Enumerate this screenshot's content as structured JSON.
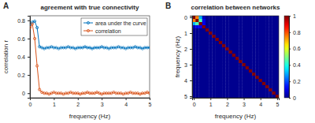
{
  "chart_data": [
    {
      "type": "line",
      "panel_label": "A",
      "title": "agreement with true connectivity",
      "x_label": "frequency (Hz)",
      "y_label": "correlation r",
      "x": [
        0,
        0.1,
        0.2,
        0.3,
        0.4,
        0.5,
        0.6,
        0.7,
        0.8,
        0.9,
        1,
        1.1,
        1.2,
        1.3,
        1.4,
        1.5,
        1.6,
        1.7,
        1.8,
        1.9,
        2,
        2.1,
        2.2,
        2.3,
        2.4,
        2.5,
        2.6,
        2.7,
        2.8,
        2.9,
        3,
        3.1,
        3.2,
        3.3,
        3.4,
        3.5,
        3.6,
        3.7,
        3.8,
        3.9,
        4,
        4.1,
        4.2,
        4.3,
        4.4,
        4.5,
        4.6,
        4.7,
        4.8,
        4.9,
        5
      ],
      "series": [
        {
          "name": "area under the curve",
          "color": "#0072bd",
          "marker": "circle",
          "line_style": "solid",
          "values": [
            0.74,
            0.78,
            0.79,
            0.72,
            0.51,
            0.5,
            0.49,
            0.5,
            0.5,
            0.51,
            0.5,
            0.5,
            0.49,
            0.5,
            0.5,
            0.5,
            0.51,
            0.5,
            0.5,
            0.49,
            0.5,
            0.5,
            0.5,
            0.51,
            0.5,
            0.5,
            0.49,
            0.5,
            0.5,
            0.5,
            0.51,
            0.5,
            0.5,
            0.49,
            0.5,
            0.5,
            0.5,
            0.51,
            0.5,
            0.5,
            0.49,
            0.5,
            0.5,
            0.5,
            0.51,
            0.5,
            0.5,
            0.49,
            0.5,
            0.5,
            0.5
          ]
        },
        {
          "name": "correlation",
          "color": "#d95319",
          "marker": "circle",
          "line_style": "solid",
          "values": [
            0.72,
            0.76,
            0.6,
            0.3,
            0.04,
            0.01,
            0,
            0,
            -0.01,
            0,
            0.01,
            0,
            0,
            0,
            -0.01,
            0,
            0,
            0.01,
            0,
            0,
            0,
            -0.01,
            0,
            0,
            0.01,
            0,
            0,
            0,
            0.01,
            0,
            -0.01,
            0,
            0,
            0,
            0,
            0.01,
            0,
            0,
            0,
            -0.01,
            0,
            0,
            0.01,
            0,
            0,
            0,
            -0.01,
            0,
            0,
            0.01,
            0
          ]
        }
      ],
      "xlim": [
        0,
        5
      ],
      "xticks": [
        0,
        1,
        2,
        3,
        4,
        5
      ],
      "ylim": [
        -0.05,
        0.85
      ],
      "yticks": [
        0,
        0.2,
        0.4,
        0.6,
        0.8
      ],
      "legend": "top-right",
      "grid": false
    },
    {
      "type": "heatmap",
      "panel_label": "B",
      "title": "correlation between networks",
      "x_label": "frequency (Hz)",
      "y_label": "frequency (Hz)",
      "x": [
        0,
        0.2,
        0.4,
        0.6,
        0.8,
        1,
        1.2,
        1.4,
        1.6,
        1.8,
        2,
        2.2,
        2.4,
        2.6,
        2.8,
        3,
        3.2,
        3.4,
        3.6,
        3.8,
        4,
        4.2,
        4.4,
        4.6,
        4.8,
        5
      ],
      "y": [
        0,
        0.2,
        0.4,
        0.6,
        0.8,
        1,
        1.2,
        1.4,
        1.6,
        1.8,
        2,
        2.2,
        2.4,
        2.6,
        2.8,
        3,
        3.2,
        3.4,
        3.6,
        3.8,
        4,
        4.2,
        4.4,
        4.6,
        4.8,
        5
      ],
      "cells": [
        [
          1,
          0.75,
          0.3,
          0.05,
          0,
          0,
          0,
          0,
          0,
          0,
          0,
          0,
          0,
          0,
          0,
          0,
          0,
          0,
          0,
          0,
          0,
          0,
          0,
          0,
          0,
          0
        ],
        [
          0.75,
          1,
          0.45,
          0.1,
          0,
          0,
          0,
          0,
          0,
          0,
          0,
          0,
          0,
          0,
          0,
          0,
          0,
          0,
          0,
          0,
          0,
          0,
          0,
          0,
          0,
          0
        ],
        [
          0.3,
          0.45,
          1,
          0.1,
          0,
          0,
          0,
          0,
          0,
          0,
          0,
          0,
          0,
          0,
          0,
          0,
          0,
          0,
          0,
          0,
          0,
          0,
          0,
          0,
          0,
          0
        ],
        [
          0.05,
          0.1,
          0.1,
          1,
          0,
          0,
          0,
          0,
          0,
          0,
          0,
          0,
          0,
          0,
          0,
          0,
          0,
          0,
          0,
          0,
          0,
          0,
          0,
          0,
          0,
          0
        ],
        [
          0,
          0,
          0,
          0,
          1,
          0,
          0,
          0,
          0,
          0,
          0,
          0,
          0,
          0,
          0,
          0,
          0,
          0,
          0,
          0,
          0,
          0,
          0,
          0,
          0,
          0
        ],
        [
          0,
          0,
          0,
          0,
          0,
          1,
          0,
          0,
          0,
          0,
          0,
          0,
          0,
          0,
          0,
          0,
          0,
          0,
          0,
          0,
          0,
          0,
          0,
          0,
          0,
          0
        ],
        [
          0,
          0,
          0,
          0,
          0,
          0,
          1,
          0,
          0,
          0,
          0,
          0,
          0,
          0,
          0,
          0,
          0,
          0,
          0,
          0,
          0,
          0,
          0,
          0,
          0,
          0
        ],
        [
          0,
          0,
          0,
          0,
          0,
          0,
          0,
          1,
          0,
          0,
          0,
          0,
          0,
          0,
          0,
          0,
          0,
          0,
          0,
          0,
          0,
          0,
          0,
          0,
          0,
          0
        ],
        [
          0,
          0,
          0,
          0,
          0,
          0,
          0,
          0,
          1,
          0,
          0,
          0,
          0,
          0,
          0,
          0,
          0,
          0,
          0,
          0,
          0,
          0,
          0,
          0,
          0,
          0
        ],
        [
          0,
          0,
          0,
          0,
          0,
          0,
          0,
          0,
          0,
          1,
          0,
          0,
          0,
          0,
          0,
          0,
          0,
          0,
          0,
          0,
          0,
          0,
          0,
          0,
          0,
          0
        ],
        [
          0,
          0,
          0,
          0,
          0,
          0,
          0,
          0,
          0,
          0,
          1,
          0,
          0,
          0,
          0,
          0,
          0,
          0,
          0,
          0,
          0,
          0,
          0,
          0,
          0,
          0
        ],
        [
          0,
          0,
          0,
          0,
          0,
          0,
          0,
          0,
          0,
          0,
          0,
          1,
          0,
          0,
          0,
          0,
          0,
          0,
          0,
          0,
          0,
          0,
          0,
          0,
          0,
          0
        ],
        [
          0,
          0,
          0,
          0,
          0,
          0,
          0,
          0,
          0,
          0,
          0,
          0,
          1,
          0,
          0,
          0,
          0,
          0,
          0,
          0,
          0,
          0,
          0,
          0,
          0,
          0
        ],
        [
          0,
          0,
          0,
          0,
          0,
          0,
          0,
          0,
          0,
          0,
          0,
          0,
          0,
          1,
          0,
          0,
          0,
          0,
          0,
          0,
          0,
          0,
          0,
          0,
          0,
          0
        ],
        [
          0,
          0,
          0,
          0,
          0,
          0,
          0,
          0,
          0,
          0,
          0,
          0,
          0,
          0,
          1,
          0,
          0,
          0,
          0,
          0,
          0,
          0,
          0,
          0,
          0,
          0
        ],
        [
          0,
          0,
          0,
          0,
          0,
          0,
          0,
          0,
          0,
          0,
          0,
          0,
          0,
          0,
          0,
          1,
          0,
          0,
          0,
          0,
          0,
          0,
          0,
          0,
          0,
          0
        ],
        [
          0,
          0,
          0,
          0,
          0,
          0,
          0,
          0,
          0,
          0,
          0,
          0,
          0,
          0,
          0,
          0,
          1,
          0,
          0,
          0,
          0,
          0,
          0,
          0,
          0,
          0
        ],
        [
          0,
          0,
          0,
          0,
          0,
          0,
          0,
          0,
          0,
          0,
          0,
          0,
          0,
          0,
          0,
          0,
          0,
          1,
          0,
          0,
          0,
          0,
          0,
          0,
          0,
          0
        ],
        [
          0,
          0,
          0,
          0,
          0,
          0,
          0,
          0,
          0,
          0,
          0,
          0,
          0,
          0,
          0,
          0,
          0,
          0,
          1,
          0,
          0,
          0,
          0,
          0,
          0,
          0
        ],
        [
          0,
          0,
          0,
          0,
          0,
          0,
          0,
          0,
          0,
          0,
          0,
          0,
          0,
          0,
          0,
          0,
          0,
          0,
          0,
          1,
          0,
          0,
          0,
          0,
          0,
          0
        ],
        [
          0,
          0,
          0,
          0,
          0,
          0,
          0,
          0,
          0,
          0,
          0,
          0,
          0,
          0,
          0,
          0,
          0,
          0,
          0,
          0,
          1,
          0,
          0,
          0,
          0,
          0
        ],
        [
          0,
          0,
          0,
          0,
          0,
          0,
          0,
          0,
          0,
          0,
          0,
          0,
          0,
          0,
          0,
          0,
          0,
          0,
          0,
          0,
          0,
          1,
          0,
          0,
          0,
          0
        ],
        [
          0,
          0,
          0,
          0,
          0,
          0,
          0,
          0,
          0,
          0,
          0,
          0,
          0,
          0,
          0,
          0,
          0,
          0,
          0,
          0,
          0,
          0,
          1,
          0,
          0,
          0
        ],
        [
          0,
          0,
          0,
          0,
          0,
          0,
          0,
          0,
          0,
          0,
          0,
          0,
          0,
          0,
          0,
          0,
          0,
          0,
          0,
          0,
          0,
          0,
          0,
          1,
          0,
          0
        ],
        [
          0,
          0,
          0,
          0,
          0,
          0,
          0,
          0,
          0,
          0,
          0,
          0,
          0,
          0,
          0,
          0,
          0,
          0,
          0,
          0,
          0,
          0,
          0,
          0,
          1,
          0
        ],
        [
          0,
          0,
          0,
          0,
          0,
          0,
          0,
          0,
          0,
          0,
          0,
          0,
          0,
          0,
          0,
          0,
          0,
          0,
          0,
          0,
          0,
          0,
          0,
          0,
          0,
          1
        ]
      ],
      "xlim": [
        -0.1,
        5.1
      ],
      "xticks": [
        0,
        1,
        2,
        3,
        4,
        5
      ],
      "ylim": [
        -0.1,
        5.1
      ],
      "yticks": [
        0,
        1,
        2,
        3,
        4,
        5
      ],
      "color": "jet",
      "colorbar": {
        "range": [
          0,
          1
        ],
        "ticks": [
          0,
          0.2,
          0.4,
          0.6,
          0.8,
          1
        ]
      }
    }
  ]
}
